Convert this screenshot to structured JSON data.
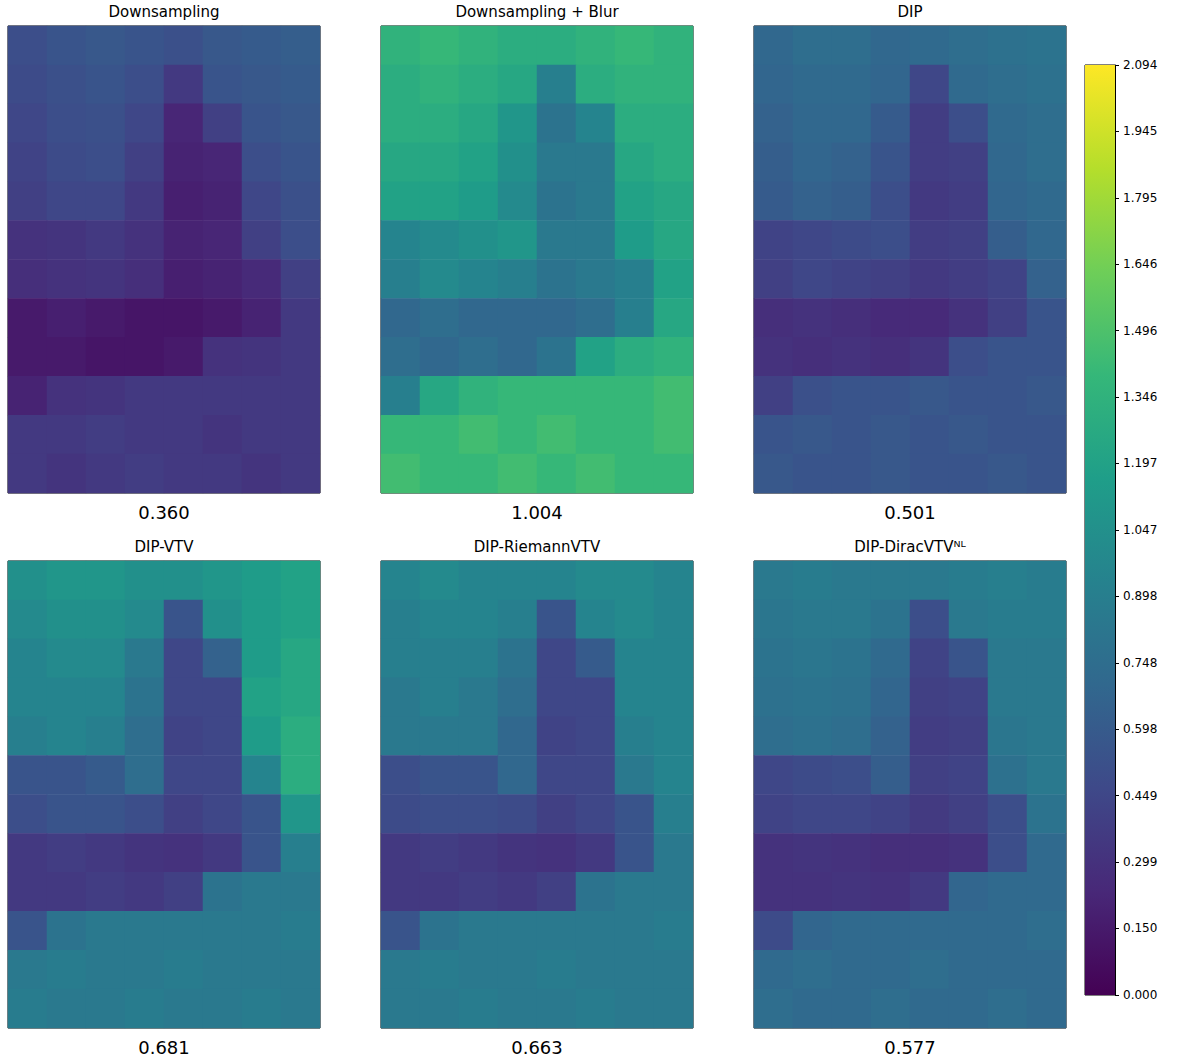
{
  "chart_data": [
    {
      "type": "heatmap",
      "title": "Downsampling",
      "score": 0.36,
      "score_label": "0.360",
      "tick_labels": false,
      "cells": [
        [
          0.5,
          0.55,
          0.58,
          0.55,
          0.52,
          0.58,
          0.6,
          0.62
        ],
        [
          0.48,
          0.52,
          0.55,
          0.5,
          0.35,
          0.55,
          0.58,
          0.6
        ],
        [
          0.45,
          0.5,
          0.52,
          0.45,
          0.22,
          0.4,
          0.55,
          0.58
        ],
        [
          0.42,
          0.48,
          0.5,
          0.4,
          0.2,
          0.22,
          0.5,
          0.55
        ],
        [
          0.4,
          0.45,
          0.45,
          0.35,
          0.18,
          0.2,
          0.45,
          0.52
        ],
        [
          0.3,
          0.32,
          0.35,
          0.3,
          0.2,
          0.22,
          0.4,
          0.5
        ],
        [
          0.28,
          0.3,
          0.32,
          0.28,
          0.18,
          0.2,
          0.25,
          0.4
        ],
        [
          0.15,
          0.18,
          0.15,
          0.12,
          0.12,
          0.15,
          0.2,
          0.35
        ],
        [
          0.15,
          0.15,
          0.12,
          0.12,
          0.15,
          0.3,
          0.32,
          0.35
        ],
        [
          0.2,
          0.3,
          0.32,
          0.35,
          0.35,
          0.35,
          0.35,
          0.35
        ],
        [
          0.35,
          0.35,
          0.38,
          0.35,
          0.35,
          0.32,
          0.35,
          0.35
        ],
        [
          0.35,
          0.32,
          0.35,
          0.38,
          0.35,
          0.35,
          0.32,
          0.35
        ]
      ]
    },
    {
      "type": "heatmap",
      "title": "Downsampling + Blur",
      "score": 1.004,
      "score_label": "1.004",
      "tick_labels": false,
      "cells": [
        [
          1.35,
          1.4,
          1.35,
          1.3,
          1.3,
          1.35,
          1.4,
          1.35
        ],
        [
          1.3,
          1.35,
          1.3,
          1.25,
          0.9,
          1.3,
          1.35,
          1.35
        ],
        [
          1.3,
          1.3,
          1.25,
          1.1,
          0.8,
          0.95,
          1.3,
          1.3
        ],
        [
          1.25,
          1.25,
          1.2,
          1.05,
          0.85,
          0.85,
          1.25,
          1.3
        ],
        [
          1.2,
          1.2,
          1.15,
          1.0,
          0.8,
          0.85,
          1.2,
          1.25
        ],
        [
          0.95,
          1.0,
          1.05,
          1.1,
          0.85,
          0.85,
          1.15,
          1.25
        ],
        [
          0.9,
          1.0,
          0.95,
          0.9,
          0.8,
          0.85,
          0.9,
          1.2
        ],
        [
          0.7,
          0.75,
          0.7,
          0.7,
          0.7,
          0.75,
          0.9,
          1.25
        ],
        [
          0.75,
          0.7,
          0.75,
          0.7,
          0.8,
          1.2,
          1.3,
          1.35
        ],
        [
          0.9,
          1.25,
          1.35,
          1.4,
          1.4,
          1.4,
          1.4,
          1.45
        ],
        [
          1.4,
          1.4,
          1.45,
          1.4,
          1.45,
          1.4,
          1.4,
          1.45
        ],
        [
          1.45,
          1.4,
          1.4,
          1.45,
          1.4,
          1.45,
          1.4,
          1.4
        ]
      ]
    },
    {
      "type": "heatmap",
      "title": "DIP",
      "score": 0.501,
      "score_label": "0.501",
      "tick_labels": false,
      "cells": [
        [
          0.7,
          0.75,
          0.75,
          0.7,
          0.72,
          0.75,
          0.78,
          0.8
        ],
        [
          0.68,
          0.72,
          0.72,
          0.68,
          0.45,
          0.72,
          0.75,
          0.78
        ],
        [
          0.65,
          0.7,
          0.7,
          0.6,
          0.38,
          0.5,
          0.72,
          0.75
        ],
        [
          0.62,
          0.68,
          0.65,
          0.55,
          0.38,
          0.4,
          0.7,
          0.75
        ],
        [
          0.6,
          0.65,
          0.62,
          0.5,
          0.35,
          0.38,
          0.68,
          0.72
        ],
        [
          0.42,
          0.45,
          0.48,
          0.5,
          0.38,
          0.4,
          0.62,
          0.7
        ],
        [
          0.4,
          0.45,
          0.42,
          0.4,
          0.35,
          0.38,
          0.42,
          0.65
        ],
        [
          0.28,
          0.3,
          0.28,
          0.25,
          0.25,
          0.3,
          0.4,
          0.55
        ],
        [
          0.3,
          0.28,
          0.3,
          0.28,
          0.32,
          0.5,
          0.55,
          0.55
        ],
        [
          0.4,
          0.52,
          0.55,
          0.55,
          0.58,
          0.55,
          0.55,
          0.58
        ],
        [
          0.55,
          0.58,
          0.55,
          0.58,
          0.55,
          0.58,
          0.55,
          0.55
        ],
        [
          0.58,
          0.55,
          0.55,
          0.58,
          0.55,
          0.55,
          0.58,
          0.55
        ]
      ]
    },
    {
      "type": "heatmap",
      "title": "DIP-VTV",
      "score": 0.681,
      "score_label": "0.681",
      "tick_labels": false,
      "cells": [
        [
          1.05,
          1.1,
          1.1,
          1.05,
          1.05,
          1.1,
          1.15,
          1.2
        ],
        [
          1.0,
          1.05,
          1.05,
          1.0,
          0.55,
          1.05,
          1.15,
          1.2
        ],
        [
          0.95,
          1.0,
          1.0,
          0.85,
          0.45,
          0.65,
          1.15,
          1.25
        ],
        [
          0.95,
          0.95,
          0.95,
          0.8,
          0.45,
          0.45,
          1.2,
          1.25
        ],
        [
          0.9,
          0.95,
          0.9,
          0.75,
          0.42,
          0.45,
          1.15,
          1.3
        ],
        [
          0.55,
          0.55,
          0.6,
          0.75,
          0.45,
          0.45,
          0.95,
          1.3
        ],
        [
          0.5,
          0.55,
          0.55,
          0.5,
          0.4,
          0.45,
          0.55,
          1.1
        ],
        [
          0.35,
          0.38,
          0.35,
          0.32,
          0.3,
          0.35,
          0.55,
          0.9
        ],
        [
          0.35,
          0.35,
          0.38,
          0.35,
          0.4,
          0.8,
          0.85,
          0.85
        ],
        [
          0.55,
          0.8,
          0.85,
          0.85,
          0.85,
          0.85,
          0.85,
          0.88
        ],
        [
          0.85,
          0.88,
          0.85,
          0.85,
          0.88,
          0.85,
          0.85,
          0.85
        ],
        [
          0.88,
          0.85,
          0.85,
          0.88,
          0.85,
          0.85,
          0.88,
          0.85
        ]
      ]
    },
    {
      "type": "heatmap",
      "title": "DIP-RiemannVTV",
      "score": 0.663,
      "score_label": "0.663",
      "tick_labels": false,
      "cells": [
        [
          0.95,
          1.0,
          0.95,
          0.95,
          0.95,
          1.0,
          1.0,
          0.95
        ],
        [
          0.9,
          0.95,
          0.95,
          0.9,
          0.55,
          0.95,
          1.0,
          0.95
        ],
        [
          0.9,
          0.9,
          0.9,
          0.8,
          0.45,
          0.6,
          0.95,
          0.95
        ],
        [
          0.85,
          0.9,
          0.85,
          0.75,
          0.45,
          0.45,
          0.95,
          0.95
        ],
        [
          0.85,
          0.85,
          0.85,
          0.7,
          0.42,
          0.45,
          0.9,
          0.95
        ],
        [
          0.5,
          0.55,
          0.55,
          0.7,
          0.45,
          0.45,
          0.85,
          0.95
        ],
        [
          0.48,
          0.5,
          0.5,
          0.48,
          0.4,
          0.45,
          0.55,
          0.9
        ],
        [
          0.35,
          0.38,
          0.35,
          0.32,
          0.3,
          0.35,
          0.55,
          0.85
        ],
        [
          0.35,
          0.35,
          0.38,
          0.35,
          0.4,
          0.8,
          0.85,
          0.85
        ],
        [
          0.55,
          0.8,
          0.85,
          0.85,
          0.85,
          0.85,
          0.85,
          0.88
        ],
        [
          0.85,
          0.88,
          0.85,
          0.85,
          0.88,
          0.85,
          0.85,
          0.85
        ],
        [
          0.85,
          0.85,
          0.88,
          0.85,
          0.85,
          0.88,
          0.85,
          0.85
        ]
      ]
    },
    {
      "type": "heatmap",
      "title": "DIP-DiracVTVᴺᴸ",
      "score": 0.577,
      "score_label": "0.577",
      "tick_labels": false,
      "cells": [
        [
          0.85,
          0.88,
          0.85,
          0.85,
          0.85,
          0.88,
          0.9,
          0.88
        ],
        [
          0.82,
          0.85,
          0.85,
          0.8,
          0.5,
          0.85,
          0.88,
          0.88
        ],
        [
          0.8,
          0.82,
          0.8,
          0.72,
          0.42,
          0.55,
          0.85,
          0.85
        ],
        [
          0.78,
          0.8,
          0.78,
          0.68,
          0.4,
          0.42,
          0.85,
          0.85
        ],
        [
          0.75,
          0.78,
          0.75,
          0.65,
          0.38,
          0.4,
          0.82,
          0.85
        ],
        [
          0.45,
          0.48,
          0.5,
          0.62,
          0.4,
          0.42,
          0.78,
          0.85
        ],
        [
          0.42,
          0.45,
          0.45,
          0.42,
          0.36,
          0.4,
          0.5,
          0.8
        ],
        [
          0.3,
          0.32,
          0.3,
          0.28,
          0.28,
          0.3,
          0.5,
          0.72
        ],
        [
          0.3,
          0.3,
          0.32,
          0.3,
          0.35,
          0.68,
          0.72,
          0.72
        ],
        [
          0.48,
          0.68,
          0.72,
          0.72,
          0.72,
          0.72,
          0.72,
          0.75
        ],
        [
          0.72,
          0.75,
          0.72,
          0.72,
          0.75,
          0.72,
          0.72,
          0.72
        ],
        [
          0.75,
          0.72,
          0.72,
          0.75,
          0.72,
          0.72,
          0.75,
          0.72
        ]
      ]
    }
  ],
  "colorbar": {
    "range": [
      0,
      2.094
    ],
    "ticks": [
      {
        "value": 0,
        "label": "0.000"
      },
      {
        "value": 0.15,
        "label": "0.150"
      },
      {
        "value": 0.299,
        "label": "0.299"
      },
      {
        "value": 0.449,
        "label": "0.449"
      },
      {
        "value": 0.598,
        "label": "0.598"
      },
      {
        "value": 0.748,
        "label": "0.748"
      },
      {
        "value": 0.898,
        "label": "0.898"
      },
      {
        "value": 1.047,
        "label": "1.047"
      },
      {
        "value": 1.197,
        "label": "1.197"
      },
      {
        "value": 1.346,
        "label": "1.346"
      },
      {
        "value": 1.496,
        "label": "1.496"
      },
      {
        "value": 1.646,
        "label": "1.646"
      },
      {
        "value": 1.795,
        "label": "1.795"
      },
      {
        "value": 1.945,
        "label": "1.945"
      },
      {
        "value": 2.094,
        "label": "2.094"
      }
    ]
  }
}
